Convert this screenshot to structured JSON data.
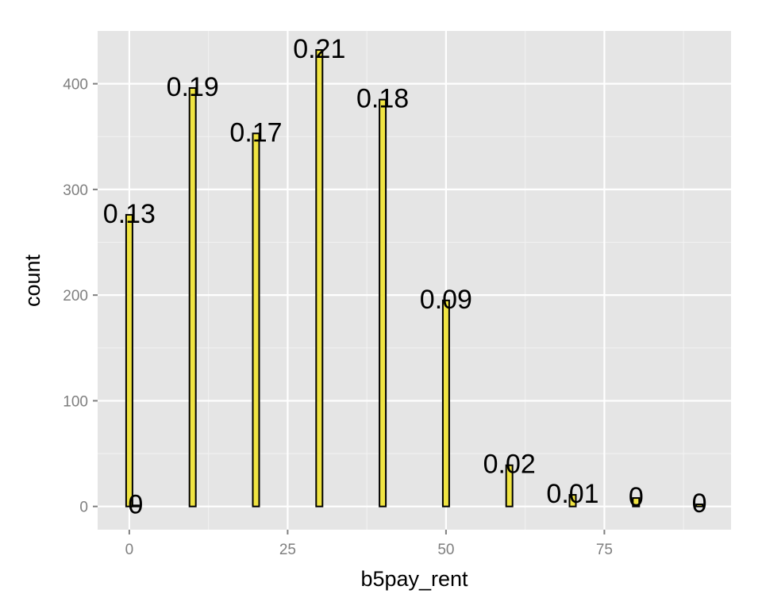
{
  "chart_data": {
    "type": "bar",
    "xlabel": "b5pay_rent",
    "ylabel": "count",
    "xlim": [
      -5,
      95
    ],
    "ylim": [
      -22,
      450
    ],
    "x_ticks": [
      0,
      25,
      50,
      75
    ],
    "y_ticks": [
      0,
      100,
      200,
      300,
      400
    ],
    "x_tick_labels": [
      "0",
      "25",
      "50",
      "75"
    ],
    "y_tick_labels": [
      "0",
      "100",
      "200",
      "300",
      "400"
    ],
    "bin_width": 1,
    "grid": true,
    "bar_fill": "#f0e442",
    "bar_stroke": "#000000",
    "panel_background": "#e5e5e5",
    "grid_color": "#ffffff",
    "bars": [
      {
        "x": 0,
        "count": 276,
        "label": "0.13"
      },
      {
        "x": 1,
        "count": 1,
        "label": "0"
      },
      {
        "x": 10,
        "count": 396,
        "label": "0.19"
      },
      {
        "x": 20,
        "count": 353,
        "label": "0.17"
      },
      {
        "x": 30,
        "count": 432,
        "label": "0.21"
      },
      {
        "x": 40,
        "count": 385,
        "label": "0.18"
      },
      {
        "x": 50,
        "count": 195,
        "label": "0.09"
      },
      {
        "x": 60,
        "count": 39,
        "label": "0.02"
      },
      {
        "x": 70,
        "count": 11,
        "label": "0.01"
      },
      {
        "x": 80,
        "count": 8,
        "label": "0"
      },
      {
        "x": 90,
        "count": 2,
        "label": "0"
      }
    ]
  }
}
